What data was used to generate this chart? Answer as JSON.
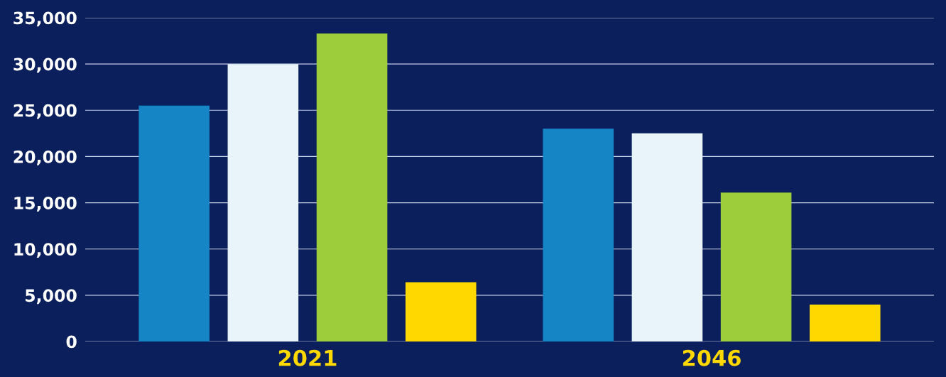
{
  "chart_data": {
    "type": "bar",
    "categories": [
      "2021",
      "2046"
    ],
    "series": [
      {
        "color": "#1585c5",
        "values": [
          25500,
          23000
        ]
      },
      {
        "color": "#e8f3fa",
        "values": [
          30000,
          22500
        ]
      },
      {
        "color": "#9dcd3a",
        "values": [
          33300,
          16100
        ]
      },
      {
        "color": "#ffd800",
        "values": [
          6400,
          4000
        ]
      }
    ],
    "ylim": [
      0,
      35000
    ],
    "yticks": [
      {
        "value": 0,
        "label": "0"
      },
      {
        "value": 5000,
        "label": "5,000"
      },
      {
        "value": 10000,
        "label": "10,000"
      },
      {
        "value": 15000,
        "label": "15,000"
      },
      {
        "value": 20000,
        "label": "20,000"
      },
      {
        "value": 25000,
        "label": "25,000"
      },
      {
        "value": 30000,
        "label": "30,000"
      },
      {
        "value": 35000,
        "label": "35,000"
      }
    ],
    "grid": "y",
    "legend": false
  }
}
